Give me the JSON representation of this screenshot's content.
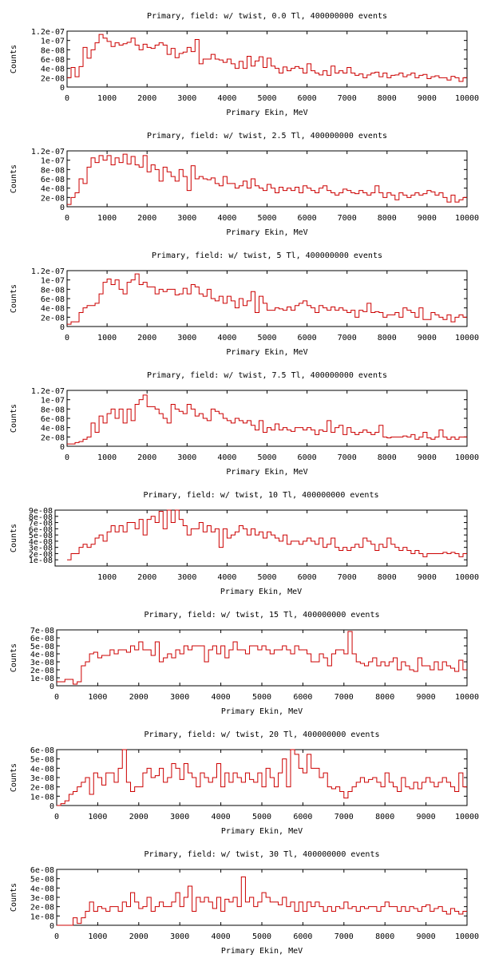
{
  "colors": {
    "line": "#cc0000",
    "axis": "#000000",
    "background": "#ffffff"
  },
  "chart_data": [
    {
      "type": "histogram",
      "title": "Primary, field: w/ twist, 0.0 Tl, 400000000 events",
      "xlabel": "Primary Ekin, MeV",
      "ylabel": "Counts",
      "xlim": [
        0,
        10000
      ],
      "ylim": [
        0,
        1.2e-07
      ],
      "x_ticks": [
        "0",
        "1000",
        "2000",
        "3000",
        "4000",
        "5000",
        "6000",
        "7000",
        "8000",
        "9000",
        "10000"
      ],
      "y_ticks": [
        "0",
        "2e-08",
        "4e-08",
        "6e-08",
        "8e-08",
        "1e-07",
        "1.2e-07"
      ],
      "grid": false,
      "bin_width": 100,
      "values": [
        2e-08,
        4.2e-08,
        2.2e-08,
        4.4e-08,
        8.5e-08,
        6.2e-08,
        8e-08,
        9.5e-08,
        1.13e-07,
        1.05e-07,
        9.8e-08,
        8.7e-08,
        9.5e-08,
        9e-08,
        9.3e-08,
        9.6e-08,
        1.05e-07,
        9e-08,
        8e-08,
        9.2e-08,
        8.5e-08,
        8.3e-08,
        9e-08,
        9.5e-08,
        9e-08,
        7e-08,
        8.3e-08,
        6.3e-08,
        7.2e-08,
        7.5e-08,
        8.5e-08,
        7.6e-08,
        1.02e-07,
        5e-08,
        6e-08,
        6e-08,
        7e-08,
        6e-08,
        5.8e-08,
        5.3e-08,
        6e-08,
        5e-08,
        4e-08,
        5.5e-08,
        4e-08,
        6.6e-08,
        4.5e-08,
        5.6e-08,
        6.5e-08,
        4.2e-08,
        6.2e-08,
        4.5e-08,
        4e-08,
        3e-08,
        4.3e-08,
        3.5e-08,
        4e-08,
        4.4e-08,
        4e-08,
        3e-08,
        5e-08,
        3.5e-08,
        3e-08,
        2.6e-08,
        3.5e-08,
        2.5e-08,
        4.5e-08,
        3e-08,
        3.5e-08,
        3e-08,
        4.2e-08,
        3e-08,
        2.5e-08,
        2.8e-08,
        2e-08,
        2.6e-08,
        3e-08,
        3.2e-08,
        2.2e-08,
        3e-08,
        2e-08,
        2.5e-08,
        2.6e-08,
        3e-08,
        2.2e-08,
        2.6e-08,
        3e-08,
        2e-08,
        2.5e-08,
        2.7e-08,
        1.8e-08,
        2.2e-08,
        2.4e-08,
        2e-08,
        2e-08,
        1.5e-08,
        2.3e-08,
        2e-08,
        1.2e-08,
        2e-08
      ]
    },
    {
      "type": "histogram",
      "title": "Primary, field: w/ twist, 2.5 Tl, 400000000 events",
      "xlabel": "Primary Ekin, MeV",
      "ylabel": "Counts",
      "xlim": [
        0,
        10000
      ],
      "ylim": [
        0,
        1.2e-07
      ],
      "x_ticks": [
        "0",
        "1000",
        "2000",
        "3000",
        "4000",
        "5000",
        "6000",
        "7000",
        "8000",
        "9000",
        "10000"
      ],
      "y_ticks": [
        "0",
        "2e-08",
        "4e-08",
        "6e-08",
        "8e-08",
        "1e-07",
        "1.2e-07"
      ],
      "grid": false,
      "bin_width": 100,
      "values": [
        5e-09,
        2e-08,
        3e-08,
        6e-08,
        5e-08,
        8.5e-08,
        1.05e-07,
        9.5e-08,
        1.1e-07,
        1e-07,
        1.1e-07,
        9e-08,
        1.05e-07,
        9.5e-08,
        1.13e-07,
        9.2e-08,
        1.08e-07,
        9e-08,
        8.5e-08,
        1.1e-07,
        7.5e-08,
        9e-08,
        8e-08,
        5.5e-08,
        8.5e-08,
        7.5e-08,
        6.5e-08,
        5.5e-08,
        8e-08,
        6.5e-08,
        3.5e-08,
        8.8e-08,
        6e-08,
        6.5e-08,
        6e-08,
        5.8e-08,
        6.2e-08,
        5e-08,
        4.5e-08,
        6.5e-08,
        5e-08,
        5e-08,
        4e-08,
        4.5e-08,
        5.5e-08,
        4e-08,
        6e-08,
        4.5e-08,
        4e-08,
        3.5e-08,
        4.8e-08,
        4e-08,
        3e-08,
        4.2e-08,
        3.5e-08,
        4e-08,
        3.5e-08,
        4.2e-08,
        3e-08,
        4.5e-08,
        4e-08,
        3.5e-08,
        3e-08,
        4e-08,
        4.5e-08,
        3.5e-08,
        3e-08,
        2.5e-08,
        3e-08,
        3.8e-08,
        3.5e-08,
        3e-08,
        2.8e-08,
        3.5e-08,
        3e-08,
        2.5e-08,
        3e-08,
        4.5e-08,
        3e-08,
        2e-08,
        3e-08,
        2.5e-08,
        1.5e-08,
        3e-08,
        2.5e-08,
        2e-08,
        2.5e-08,
        3e-08,
        2.5e-08,
        2.8e-08,
        3.5e-08,
        3.2e-08,
        2.5e-08,
        3e-08,
        2e-08,
        1e-08,
        2.5e-08,
        1e-08,
        1.5e-08,
        2e-08
      ]
    },
    {
      "type": "histogram",
      "title": "Primary, field: w/ twist, 5 Tl, 400000000 events",
      "xlabel": "Primary Ekin, MeV",
      "ylabel": "Counts",
      "xlim": [
        0,
        10000
      ],
      "ylim": [
        0,
        1.2e-07
      ],
      "x_ticks": [
        "0",
        "1000",
        "2000",
        "3000",
        "4000",
        "5000",
        "6000",
        "7000",
        "8000",
        "9000",
        "10000"
      ],
      "y_ticks": [
        "0",
        "2e-08",
        "4e-08",
        "6e-08",
        "8e-08",
        "1e-07",
        "1.2e-07"
      ],
      "grid": false,
      "bin_width": 100,
      "values": [
        5e-09,
        1e-08,
        1e-08,
        3e-08,
        4e-08,
        4.5e-08,
        4.5e-08,
        5e-08,
        7e-08,
        9.5e-08,
        1.02e-07,
        9e-08,
        1e-07,
        8e-08,
        7e-08,
        9.5e-08,
        1e-07,
        1.13e-07,
        9e-08,
        9.5e-08,
        8.5e-08,
        8.5e-08,
        7e-08,
        8e-08,
        7.5e-08,
        8e-08,
        8e-08,
        6.8e-08,
        7e-08,
        8.2e-08,
        7e-08,
        9e-08,
        8.5e-08,
        7e-08,
        6.5e-08,
        8e-08,
        6e-08,
        5.5e-08,
        6.5e-08,
        5e-08,
        6.5e-08,
        5.5e-08,
        4e-08,
        6e-08,
        4.5e-08,
        5.5e-08,
        7.5e-08,
        3e-08,
        6.5e-08,
        5e-08,
        3.5e-08,
        3.5e-08,
        4e-08,
        3.8e-08,
        3.5e-08,
        4.2e-08,
        3.5e-08,
        4.5e-08,
        5e-08,
        5.5e-08,
        4.5e-08,
        4e-08,
        3e-08,
        4.5e-08,
        4e-08,
        3.5e-08,
        4.2e-08,
        3.5e-08,
        4e-08,
        3.5e-08,
        3e-08,
        3.5e-08,
        2e-08,
        3.5e-08,
        3.2e-08,
        5e-08,
        3e-08,
        3.2e-08,
        3e-08,
        2e-08,
        2.5e-08,
        2.5e-08,
        3e-08,
        2e-08,
        4e-08,
        3.5e-08,
        3e-08,
        2e-08,
        4e-08,
        1.5e-08,
        1.5e-08,
        3e-08,
        2.5e-08,
        2e-08,
        1.5e-08,
        2.5e-08,
        1e-08,
        2e-08,
        2.5e-08,
        2e-08
      ]
    },
    {
      "type": "histogram",
      "title": "Primary, field: w/ twist, 7.5 Tl, 400000000 events",
      "xlabel": "Primary Ekin, MeV",
      "ylabel": "Counts",
      "xlim": [
        0,
        10000
      ],
      "ylim": [
        0,
        1.2e-07
      ],
      "x_ticks": [
        "0",
        "1000",
        "2000",
        "3000",
        "4000",
        "5000",
        "6000",
        "7000",
        "8000",
        "9000",
        "10000"
      ],
      "y_ticks": [
        "0",
        "2e-08",
        "4e-08",
        "6e-08",
        "8e-08",
        "1e-07",
        "1.2e-07"
      ],
      "grid": false,
      "bin_width": 100,
      "values": [
        5e-09,
        5e-09,
        8e-09,
        1e-08,
        1.5e-08,
        2e-08,
        5e-08,
        3e-08,
        6.5e-08,
        5e-08,
        7e-08,
        8e-08,
        6e-08,
        8e-08,
        5e-08,
        8e-08,
        5.5e-08,
        9e-08,
        1e-07,
        1.1e-07,
        8.5e-08,
        8.5e-08,
        8e-08,
        7e-08,
        6e-08,
        5e-08,
        9e-08,
        8e-08,
        7.5e-08,
        7e-08,
        9e-08,
        8e-08,
        6.5e-08,
        7e-08,
        6e-08,
        5.5e-08,
        8e-08,
        7.5e-08,
        7e-08,
        6e-08,
        5.5e-08,
        5e-08,
        6e-08,
        5.5e-08,
        5e-08,
        5.5e-08,
        4.5e-08,
        3.5e-08,
        5.5e-08,
        3e-08,
        4e-08,
        3.5e-08,
        4.8e-08,
        3.5e-08,
        4e-08,
        3.5e-08,
        3.2e-08,
        4e-08,
        4e-08,
        3.5e-08,
        4e-08,
        3.5e-08,
        2.5e-08,
        3.5e-08,
        3.2e-08,
        5.5e-08,
        3e-08,
        4e-08,
        4.5e-08,
        2.5e-08,
        4e-08,
        3e-08,
        2.5e-08,
        3e-08,
        3.5e-08,
        3e-08,
        2.5e-08,
        3e-08,
        4.5e-08,
        2e-08,
        1.8e-08,
        2e-08,
        2e-08,
        2e-08,
        2.2e-08,
        2e-08,
        2.5e-08,
        1.5e-08,
        2e-08,
        3e-08,
        1.8e-08,
        1.5e-08,
        2e-08,
        3.5e-08,
        2e-08,
        1.5e-08,
        2e-08,
        1.5e-08,
        2e-08,
        2e-08
      ]
    },
    {
      "type": "histogram",
      "title": "Primary, field: w/ twist, 10 Tl, 400000000 events",
      "xlabel": "Primary Ekin, MeV",
      "ylabel": "Counts",
      "xlim": [
        -300,
        10000
      ],
      "ylim": [
        0,
        9e-08
      ],
      "x_ticks": [
        "1000",
        "2000",
        "3000",
        "4000",
        "5000",
        "6000",
        "7000",
        "8000",
        "9000",
        "10000"
      ],
      "y_ticks": [
        "1e-08",
        "2e-08",
        "3e-08",
        "4e-08",
        "5e-08",
        "6e-08",
        "7e-08",
        "8e-08",
        "9e-08"
      ],
      "grid": false,
      "bin_width": 100,
      "values": [
        1e-08,
        2e-08,
        2e-08,
        3e-08,
        3.5e-08,
        3e-08,
        3.5e-08,
        4.5e-08,
        5e-08,
        4e-08,
        5.5e-08,
        6.5e-08,
        5.5e-08,
        6.5e-08,
        5.5e-08,
        7e-08,
        7e-08,
        6e-08,
        7.5e-08,
        5e-08,
        7.5e-08,
        8e-08,
        7e-08,
        8.8e-08,
        6e-08,
        9e-08,
        7e-08,
        9e-08,
        7.5e-08,
        6.5e-08,
        5e-08,
        6e-08,
        6e-08,
        7e-08,
        5.5e-08,
        6.5e-08,
        5.5e-08,
        6e-08,
        3e-08,
        6e-08,
        4.5e-08,
        5e-08,
        5.5e-08,
        6.5e-08,
        6e-08,
        5e-08,
        6e-08,
        5e-08,
        5.5e-08,
        4.5e-08,
        5.5e-08,
        5e-08,
        4.5e-08,
        4e-08,
        5e-08,
        3.5e-08,
        4e-08,
        4e-08,
        3.5e-08,
        4e-08,
        4.5e-08,
        4e-08,
        3.5e-08,
        4.5e-08,
        3e-08,
        3.5e-08,
        4.5e-08,
        3e-08,
        2.5e-08,
        3e-08,
        2.5e-08,
        3e-08,
        3.5e-08,
        3e-08,
        4.5e-08,
        4e-08,
        3.5e-08,
        2.5e-08,
        3.5e-08,
        3e-08,
        4.5e-08,
        3.5e-08,
        3e-08,
        2.5e-08,
        3e-08,
        2.5e-08,
        2e-08,
        2.5e-08,
        2e-08,
        1.5e-08,
        2e-08,
        2e-08,
        2e-08,
        2e-08,
        2.2e-08,
        2e-08,
        2.2e-08,
        2e-08,
        1.5e-08,
        2e-08
      ]
    },
    {
      "type": "histogram",
      "title": "Primary, field: w/ twist, 15 Tl, 400000000 events",
      "xlabel": "Primary Ekin, MeV",
      "ylabel": "Counts",
      "xlim": [
        0,
        10000
      ],
      "ylim": [
        0,
        7e-08
      ],
      "x_ticks": [
        "0",
        "1000",
        "2000",
        "3000",
        "4000",
        "5000",
        "6000",
        "7000",
        "8000",
        "9000",
        "10000"
      ],
      "y_ticks": [
        "0",
        "1e-08",
        "2e-08",
        "3e-08",
        "4e-08",
        "5e-08",
        "6e-08",
        "7e-08"
      ],
      "grid": false,
      "bin_width": 100,
      "values": [
        5e-09,
        5e-09,
        8e-09,
        8e-09,
        2e-09,
        5e-09,
        2.5e-08,
        3e-08,
        4e-08,
        4.2e-08,
        3.5e-08,
        3.8e-08,
        3.8e-08,
        4.5e-08,
        4e-08,
        4.5e-08,
        4.5e-08,
        4.2e-08,
        5e-08,
        4.5e-08,
        5.5e-08,
        4.5e-08,
        4.5e-08,
        3.8e-08,
        5.5e-08,
        3e-08,
        3.5e-08,
        4e-08,
        3.5e-08,
        4.5e-08,
        4e-08,
        5e-08,
        4.5e-08,
        5e-08,
        5e-08,
        5e-08,
        3e-08,
        4.5e-08,
        5e-08,
        4e-08,
        5e-08,
        3.5e-08,
        4.5e-08,
        5.5e-08,
        4.5e-08,
        4.5e-08,
        4e-08,
        5e-08,
        5e-08,
        4.5e-08,
        5e-08,
        4.5e-08,
        4e-08,
        4.5e-08,
        4.5e-08,
        5e-08,
        4.5e-08,
        4e-08,
        5e-08,
        4.5e-08,
        4.5e-08,
        4e-08,
        3e-08,
        3e-08,
        4e-08,
        3.5e-08,
        2.5e-08,
        4e-08,
        4.5e-08,
        4.5e-08,
        4e-08,
        6.8e-08,
        4e-08,
        3e-08,
        2.8e-08,
        2.5e-08,
        3e-08,
        3.5e-08,
        2.5e-08,
        3e-08,
        2.5e-08,
        3e-08,
        3.5e-08,
        2e-08,
        3e-08,
        2.5e-08,
        2e-08,
        1.8e-08,
        3.5e-08,
        2.5e-08,
        2.5e-08,
        2e-08,
        3e-08,
        2e-08,
        3e-08,
        2.5e-08,
        2.2e-08,
        1.8e-08,
        3.2e-08,
        2e-08
      ]
    },
    {
      "type": "histogram",
      "title": "Primary, field: w/ twist, 20 Tl, 400000000 events",
      "xlabel": "Primary Ekin, MeV",
      "ylabel": "Counts",
      "xlim": [
        0,
        10000
      ],
      "ylim": [
        0,
        6e-08
      ],
      "x_ticks": [
        "0",
        "1000",
        "2000",
        "3000",
        "4000",
        "5000",
        "6000",
        "7000",
        "8000",
        "9000",
        "10000"
      ],
      "y_ticks": [
        "0",
        "1e-08",
        "2e-08",
        "3e-08",
        "4e-08",
        "5e-08",
        "6e-08"
      ],
      "grid": false,
      "bin_width": 100,
      "values": [
        0.0,
        2e-09,
        5e-09,
        1.2e-08,
        1.5e-08,
        2e-08,
        2.5e-08,
        3e-08,
        1.2e-08,
        3.5e-08,
        3e-08,
        2.2e-08,
        3.5e-08,
        3.5e-08,
        2.5e-08,
        4e-08,
        6e-08,
        2.5e-08,
        1.5e-08,
        2e-08,
        2e-08,
        3.5e-08,
        4e-08,
        3e-08,
        3.2e-08,
        4e-08,
        2.5e-08,
        3e-08,
        4.5e-08,
        4e-08,
        2.8e-08,
        4.5e-08,
        3.5e-08,
        3e-08,
        2e-08,
        3.5e-08,
        3e-08,
        2.5e-08,
        3e-08,
        4.5e-08,
        2e-08,
        3.5e-08,
        2.5e-08,
        3.5e-08,
        3e-08,
        2.5e-08,
        3.5e-08,
        2.8e-08,
        2.5e-08,
        3.5e-08,
        2e-08,
        4e-08,
        3e-08,
        2e-08,
        3.5e-08,
        5e-08,
        2e-08,
        6e-08,
        5.5e-08,
        4e-08,
        3.5e-08,
        5.5e-08,
        4e-08,
        4e-08,
        3e-08,
        3.5e-08,
        2e-08,
        1.8e-08,
        2e-08,
        1.5e-08,
        8e-09,
        1.5e-08,
        2e-08,
        2.5e-08,
        3e-08,
        2.5e-08,
        2.8e-08,
        3e-08,
        2.5e-08,
        2e-08,
        3.5e-08,
        2.5e-08,
        2e-08,
        1.5e-08,
        3e-08,
        2e-08,
        1.8e-08,
        2.5e-08,
        1.8e-08,
        2.5e-08,
        3e-08,
        2.5e-08,
        2e-08,
        2.5e-08,
        3e-08,
        2.5e-08,
        2e-08,
        1.5e-08,
        3.5e-08,
        2e-08
      ]
    },
    {
      "type": "histogram",
      "title": "Primary, field: w/ twist, 30 Tl, 400000000 events",
      "xlabel": "Primary Ekin, MeV",
      "ylabel": "Counts",
      "xlim": [
        0,
        10000
      ],
      "ylim": [
        0,
        6e-08
      ],
      "x_ticks": [
        "0",
        "1000",
        "2000",
        "3000",
        "4000",
        "5000",
        "6000",
        "7000",
        "8000",
        "9000",
        "10000"
      ],
      "y_ticks": [
        "0",
        "1e-08",
        "2e-08",
        "3e-08",
        "4e-08",
        "5e-08",
        "6e-08"
      ],
      "grid": false,
      "bin_width": 100,
      "values": [
        0.0,
        0.0,
        0.0,
        0.0,
        8e-09,
        2e-09,
        8e-09,
        1.5e-08,
        2.5e-08,
        1.5e-08,
        2e-08,
        1.8e-08,
        1.5e-08,
        2e-08,
        2e-08,
        1.5e-08,
        2.5e-08,
        2e-08,
        3.5e-08,
        2.5e-08,
        1.8e-08,
        2e-08,
        3e-08,
        1.5e-08,
        2e-08,
        2.5e-08,
        2e-08,
        2e-08,
        2.5e-08,
        3.5e-08,
        2e-08,
        3e-08,
        4.2e-08,
        1.5e-08,
        3e-08,
        2.5e-08,
        3e-08,
        2.5e-08,
        1.8e-08,
        3e-08,
        1.5e-08,
        2.8e-08,
        2.5e-08,
        3e-08,
        2e-08,
        5.2e-08,
        2.5e-08,
        3e-08,
        2e-08,
        2.5e-08,
        3.5e-08,
        3e-08,
        2.5e-08,
        2.5e-08,
        2.2e-08,
        3e-08,
        2e-08,
        2.5e-08,
        1.5e-08,
        2.5e-08,
        1.5e-08,
        2.5e-08,
        2e-08,
        2.5e-08,
        2e-08,
        1.5e-08,
        2e-08,
        1.5e-08,
        2e-08,
        1.8e-08,
        2.5e-08,
        1.8e-08,
        2e-08,
        1.5e-08,
        2e-08,
        1.8e-08,
        2e-08,
        2e-08,
        1.5e-08,
        2e-08,
        2.5e-08,
        2e-08,
        2e-08,
        1.5e-08,
        2e-08,
        1.5e-08,
        2e-08,
        1.8e-08,
        1.5e-08,
        2e-08,
        2.2e-08,
        1.5e-08,
        1.8e-08,
        2e-08,
        1.5e-08,
        1.2e-08,
        1.8e-08,
        1.5e-08,
        1.2e-08,
        1.5e-08
      ]
    }
  ]
}
